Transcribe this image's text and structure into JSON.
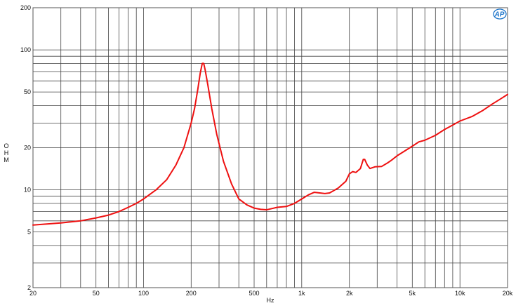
{
  "chart_data": {
    "type": "line",
    "xlabel": "Hz",
    "ylabel": "OHM",
    "x_scale": "log",
    "y_scale": "log",
    "xlim": [
      20,
      20000
    ],
    "ylim": [
      2,
      200
    ],
    "grid": true,
    "x_ticks": [
      {
        "value": 20,
        "label": "20"
      },
      {
        "value": 50,
        "label": "50"
      },
      {
        "value": 100,
        "label": "100"
      },
      {
        "value": 200,
        "label": "200"
      },
      {
        "value": 500,
        "label": "500"
      },
      {
        "value": 1000,
        "label": "1k"
      },
      {
        "value": 2000,
        "label": "2k"
      },
      {
        "value": 5000,
        "label": "5k"
      },
      {
        "value": 10000,
        "label": "10k"
      },
      {
        "value": 20000,
        "label": "20k"
      }
    ],
    "y_ticks": [
      {
        "value": 2,
        "label": "2"
      },
      {
        "value": 5,
        "label": "5"
      },
      {
        "value": 10,
        "label": "10"
      },
      {
        "value": 20,
        "label": "20"
      },
      {
        "value": 50,
        "label": "50"
      },
      {
        "value": 100,
        "label": "100"
      },
      {
        "value": 200,
        "label": "200"
      }
    ],
    "x_grid": [
      20,
      30,
      40,
      50,
      60,
      70,
      80,
      90,
      100,
      200,
      300,
      400,
      500,
      600,
      700,
      800,
      900,
      1000,
      2000,
      3000,
      4000,
      5000,
      6000,
      7000,
      8000,
      9000,
      10000,
      20000
    ],
    "y_grid": [
      2,
      3,
      4,
      5,
      6,
      7,
      8,
      9,
      10,
      20,
      30,
      40,
      50,
      60,
      70,
      80,
      90,
      100,
      200
    ],
    "series": [
      {
        "color": "#ee1111",
        "points": [
          [
            20,
            5.6
          ],
          [
            30,
            5.8
          ],
          [
            40,
            6.0
          ],
          [
            50,
            6.3
          ],
          [
            60,
            6.6
          ],
          [
            70,
            7.0
          ],
          [
            80,
            7.5
          ],
          [
            90,
            8.0
          ],
          [
            100,
            8.6
          ],
          [
            120,
            10.0
          ],
          [
            140,
            11.8
          ],
          [
            160,
            15.0
          ],
          [
            180,
            20.0
          ],
          [
            200,
            30.0
          ],
          [
            210,
            38.0
          ],
          [
            220,
            52.0
          ],
          [
            228,
            68.0
          ],
          [
            235,
            80.0
          ],
          [
            240,
            80.0
          ],
          [
            245,
            72.0
          ],
          [
            255,
            56.0
          ],
          [
            270,
            38.0
          ],
          [
            290,
            25.0
          ],
          [
            320,
            16.0
          ],
          [
            360,
            11.0
          ],
          [
            400,
            8.6
          ],
          [
            450,
            7.8
          ],
          [
            500,
            7.4
          ],
          [
            550,
            7.25
          ],
          [
            600,
            7.2
          ],
          [
            650,
            7.35
          ],
          [
            700,
            7.5
          ],
          [
            800,
            7.6
          ],
          [
            900,
            8.0
          ],
          [
            1000,
            8.6
          ],
          [
            1100,
            9.2
          ],
          [
            1200,
            9.6
          ],
          [
            1300,
            9.5
          ],
          [
            1400,
            9.4
          ],
          [
            1500,
            9.5
          ],
          [
            1700,
            10.3
          ],
          [
            1900,
            11.5
          ],
          [
            2000,
            13.0
          ],
          [
            2100,
            13.5
          ],
          [
            2200,
            13.3
          ],
          [
            2350,
            14.2
          ],
          [
            2450,
            16.5
          ],
          [
            2500,
            16.5
          ],
          [
            2600,
            15.0
          ],
          [
            2700,
            14.2
          ],
          [
            2900,
            14.6
          ],
          [
            3200,
            14.7
          ],
          [
            3500,
            15.6
          ],
          [
            3700,
            16.3
          ],
          [
            4000,
            17.5
          ],
          [
            4500,
            19.0
          ],
          [
            5000,
            20.5
          ],
          [
            5500,
            22.0
          ],
          [
            6000,
            22.6
          ],
          [
            7000,
            24.5
          ],
          [
            8000,
            27.0
          ],
          [
            9000,
            29.0
          ],
          [
            10000,
            31.0
          ],
          [
            12000,
            33.5
          ],
          [
            14000,
            37.0
          ],
          [
            16000,
            41.0
          ],
          [
            18000,
            44.5
          ],
          [
            20000,
            48.0
          ]
        ]
      }
    ]
  }
}
